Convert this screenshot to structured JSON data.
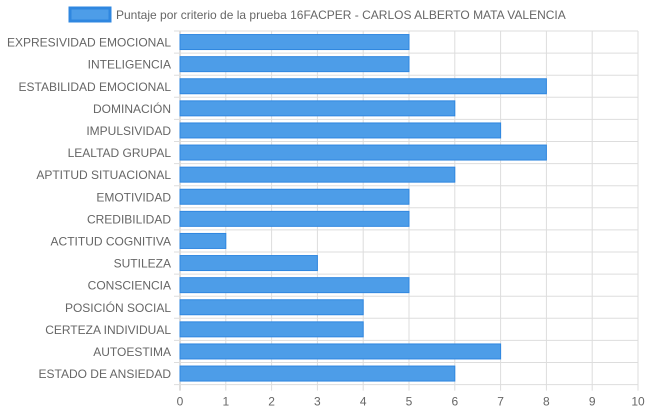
{
  "chart_data": {
    "type": "bar",
    "orientation": "horizontal",
    "categories": [
      "EXPRESIVIDAD EMOCIONAL",
      "INTELIGENCIA",
      "ESTABILIDAD EMOCIONAL",
      "DOMINACIÓN",
      "IMPULSIVIDAD",
      "LEALTAD GRUPAL",
      "APTITUD SITUACIONAL",
      "EMOTIVIDAD",
      "CREDIBILIDAD",
      "ACTITUD COGNITIVA",
      "SUTILEZA",
      "CONSCIENCIA",
      "POSICIÓN SOCIAL",
      "CERTEZA INDIVIDUAL",
      "AUTOESTIMA",
      "ESTADO DE ANSIEDAD"
    ],
    "series": [
      {
        "name": "Puntaje por criterio de la prueba 16FACPER - CARLOS ALBERTO MATA VALENCIA",
        "values": [
          5,
          5,
          8,
          6,
          7,
          8,
          6,
          5,
          5,
          1,
          3,
          5,
          4,
          4,
          7,
          6
        ]
      }
    ],
    "xlim": [
      0,
      10
    ],
    "xticks": [
      "0",
      "1",
      "2",
      "3",
      "4",
      "5",
      "6",
      "7",
      "8",
      "9",
      "10"
    ],
    "grid": true,
    "legend_position": "top",
    "colors": {
      "bar_fill": "#4d9de8",
      "bar_border": "#2f87e0",
      "grid": "#dddddd"
    }
  }
}
